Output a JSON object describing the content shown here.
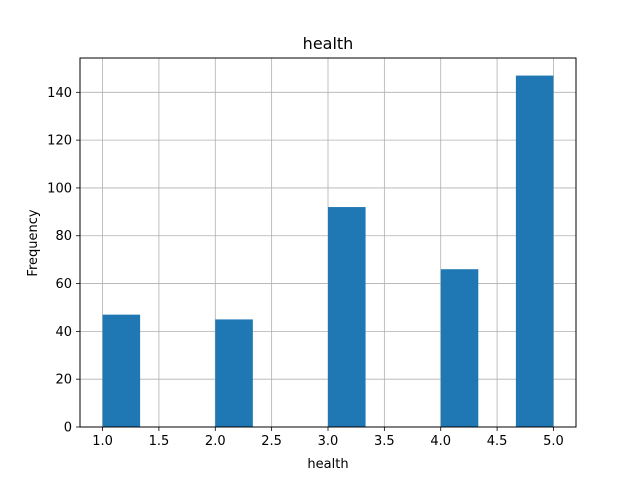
{
  "chart_data": {
    "type": "bar",
    "title": "health",
    "xlabel": "health",
    "ylabel": "Frequency",
    "bins": [
      {
        "x_start": 1.0,
        "x_end": 1.3333,
        "value": 47
      },
      {
        "x_start": 2.0,
        "x_end": 2.3333,
        "value": 45
      },
      {
        "x_start": 3.0,
        "x_end": 3.3333,
        "value": 92
      },
      {
        "x_start": 4.0,
        "x_end": 4.3333,
        "value": 66
      },
      {
        "x_start": 4.6667,
        "x_end": 5.0,
        "value": 147
      }
    ],
    "xlim": [
      0.8,
      5.2
    ],
    "ylim": [
      0,
      154.35
    ],
    "xticks": [
      "1.0",
      "1.5",
      "2.0",
      "2.5",
      "3.0",
      "3.5",
      "4.0",
      "4.5",
      "5.0"
    ],
    "yticks": [
      "0",
      "20",
      "40",
      "60",
      "80",
      "100",
      "120",
      "140"
    ],
    "grid": true,
    "bar_color": "#1f77b4",
    "grid_color": "#b0b0b0"
  }
}
